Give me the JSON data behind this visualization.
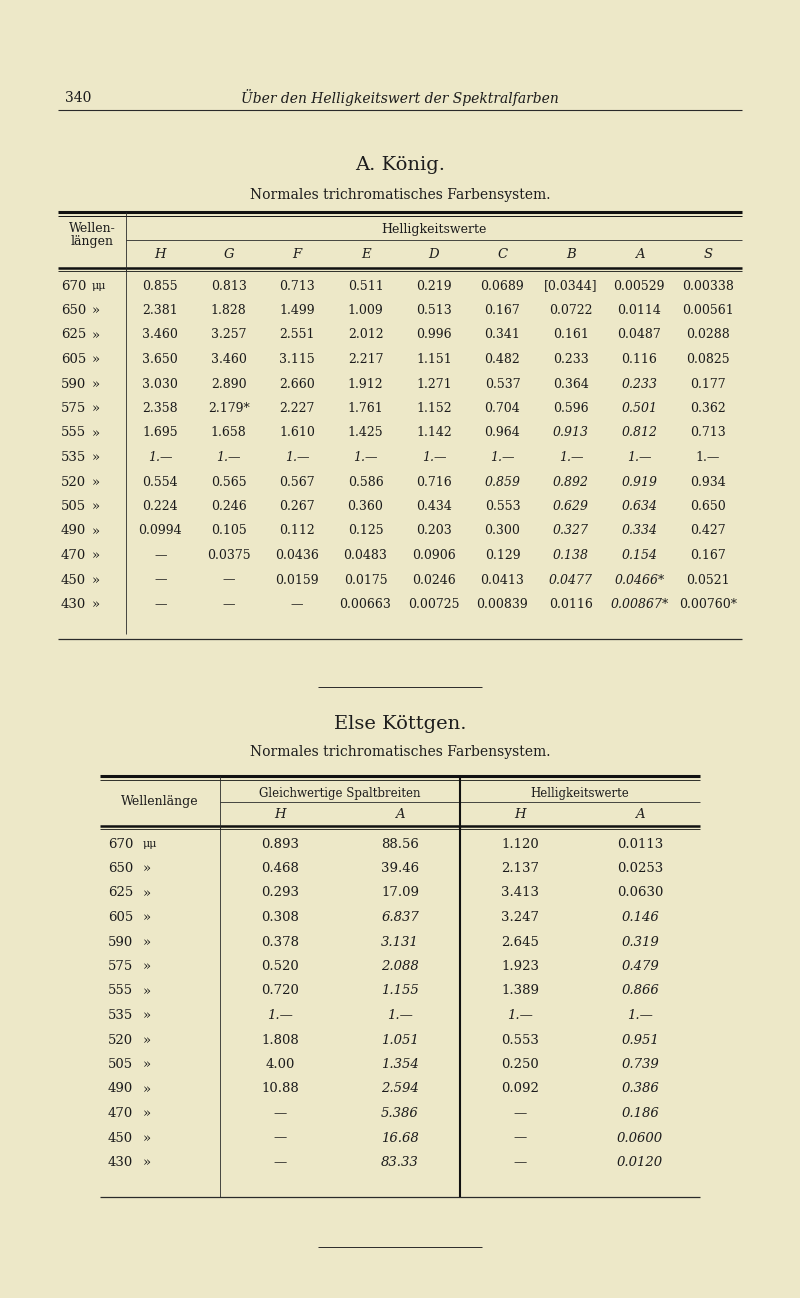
{
  "background_color": "#ede8c8",
  "page_number": "340",
  "page_header": "Über den Helligkeitswert der Spektralfarben",
  "section1_title": "A. König.",
  "section1_subtitle": "Normales trichromatisches Farbensystem.",
  "section1_col_header_span": "Helligkeitswerte",
  "section1_row_header": [
    "Wellen-",
    "längen"
  ],
  "section1_col_headers": [
    "H",
    "G",
    "F",
    "E",
    "D",
    "C",
    "B",
    "A",
    "S"
  ],
  "section1_rows": [
    [
      "670",
      "μμ",
      "0.855",
      "0.813",
      "0.713",
      "0.511",
      "0.219",
      "0.0689",
      "[0.0344]",
      "0.00529",
      "0.00338"
    ],
    [
      "650",
      "»",
      "2.381",
      "1.828",
      "1.499",
      "1.009",
      "0.513",
      "0.167",
      "0.0722",
      "0.0114",
      "0.00561"
    ],
    [
      "625",
      "»",
      "3.460",
      "3.257",
      "2.551",
      "2.012",
      "0.996",
      "0.341",
      "0.161",
      "0.0487",
      "0.0288"
    ],
    [
      "605",
      "»",
      "3.650",
      "3.460",
      "3.115",
      "2.217",
      "1.151",
      "0.482",
      "0.233",
      "0.116",
      "0.0825"
    ],
    [
      "590",
      "»",
      "3.030",
      "2.890",
      "2.660",
      "1.912",
      "1.271",
      "0.537",
      "0.364",
      "0.233",
      "0.177"
    ],
    [
      "575",
      "»",
      "2.358",
      "2.179*",
      "2.227",
      "1.761",
      "1.152",
      "0.704",
      "0.596",
      "0.501",
      "0.362"
    ],
    [
      "555",
      "»",
      "1.695",
      "1.658",
      "1.610",
      "1.425",
      "1.142",
      "0.964",
      "0.913",
      "0.812",
      "0.713"
    ],
    [
      "535",
      "»",
      "1.—",
      "1.—",
      "1.—",
      "1.—",
      "1.—",
      "1.—",
      "1.—",
      "1.—",
      "1.—"
    ],
    [
      "520",
      "»",
      "0.554",
      "0.565",
      "0.567",
      "0.586",
      "0.716",
      "0.859",
      "0.892",
      "0.919",
      "0.934"
    ],
    [
      "505",
      "»",
      "0.224",
      "0.246",
      "0.267",
      "0.360",
      "0.434",
      "0.553",
      "0.629",
      "0.634",
      "0.650"
    ],
    [
      "490",
      "»",
      "0.0994",
      "0.105",
      "0.112",
      "0.125",
      "0.203",
      "0.300",
      "0.327",
      "0.334",
      "0.427"
    ],
    [
      "470",
      "»",
      "—",
      "0.0375",
      "0.0436",
      "0.0483",
      "0.0906",
      "0.129",
      "0.138",
      "0.154",
      "0.167"
    ],
    [
      "450",
      "»",
      "—",
      "—",
      "0.0159",
      "0.0175",
      "0.0246",
      "0.0413",
      "0.0477",
      "0.0466*",
      "0.0521"
    ],
    [
      "430",
      "»",
      "—",
      "—",
      "—",
      "0.00663",
      "0.00725",
      "0.00839",
      "0.0116",
      "0.00867*",
      "0.00760*"
    ]
  ],
  "section1_italic_data": [
    [
      false,
      false,
      false,
      false,
      false,
      false,
      false,
      false,
      false
    ],
    [
      false,
      false,
      false,
      false,
      false,
      false,
      false,
      false,
      false
    ],
    [
      false,
      false,
      false,
      false,
      false,
      false,
      false,
      false,
      false
    ],
    [
      false,
      false,
      false,
      false,
      false,
      false,
      false,
      false,
      false
    ],
    [
      false,
      false,
      false,
      false,
      false,
      false,
      false,
      true,
      false
    ],
    [
      false,
      false,
      false,
      false,
      false,
      false,
      false,
      true,
      false
    ],
    [
      false,
      false,
      false,
      false,
      false,
      false,
      true,
      true,
      false
    ],
    [
      true,
      true,
      true,
      true,
      true,
      true,
      true,
      true,
      false
    ],
    [
      false,
      false,
      false,
      false,
      false,
      true,
      true,
      true,
      false
    ],
    [
      false,
      false,
      false,
      false,
      false,
      false,
      true,
      true,
      false
    ],
    [
      false,
      false,
      false,
      false,
      false,
      false,
      true,
      true,
      false
    ],
    [
      false,
      false,
      false,
      false,
      false,
      false,
      true,
      true,
      false
    ],
    [
      false,
      false,
      false,
      false,
      false,
      false,
      true,
      true,
      false
    ],
    [
      false,
      false,
      false,
      false,
      false,
      false,
      false,
      true,
      false
    ]
  ],
  "section2_title": "Else Köttgen.",
  "section2_subtitle": "Normales trichromatisches Farbensystem.",
  "section2_col_group1": "Gleichwertige Spaltbreiten",
  "section2_col_group2": "Helligkeitswerte",
  "section2_row_header": "Wellenlänge",
  "section2_col_headers": [
    "H",
    "A",
    "H",
    "A"
  ],
  "section2_rows": [
    [
      "670",
      "μμ",
      "0.893",
      "88.56",
      "1.120",
      "0.0113"
    ],
    [
      "650",
      "»",
      "0.468",
      "39.46",
      "2.137",
      "0.0253"
    ],
    [
      "625",
      "»",
      "0.293",
      "17.09",
      "3.413",
      "0.0630"
    ],
    [
      "605",
      "»",
      "0.308",
      "6.837",
      "3.247",
      "0.146"
    ],
    [
      "590",
      "»",
      "0.378",
      "3.131",
      "2.645",
      "0.319"
    ],
    [
      "575",
      "»",
      "0.520",
      "2.088",
      "1.923",
      "0.479"
    ],
    [
      "555",
      "»",
      "0.720",
      "1.155",
      "1.389",
      "0.866"
    ],
    [
      "535",
      "»",
      "1.—",
      "1.—",
      "1.—",
      "1.—"
    ],
    [
      "520",
      "»",
      "1.808",
      "1.051",
      "0.553",
      "0.951"
    ],
    [
      "505",
      "»",
      "4.00",
      "1.354",
      "0.250",
      "0.739"
    ],
    [
      "490",
      "»",
      "10.88",
      "2.594",
      "0.092",
      "0.386"
    ],
    [
      "470",
      "»",
      "—",
      "5.386",
      "—",
      "0.186"
    ],
    [
      "450",
      "»",
      "—",
      "16.68",
      "—",
      "0.0600"
    ],
    [
      "430",
      "»",
      "—",
      "83.33",
      "—",
      "0.0120"
    ]
  ],
  "section2_italic_data": [
    [
      false,
      false,
      false,
      false
    ],
    [
      false,
      false,
      false,
      false
    ],
    [
      false,
      false,
      false,
      false
    ],
    [
      false,
      true,
      false,
      true
    ],
    [
      false,
      true,
      false,
      true
    ],
    [
      false,
      true,
      false,
      true
    ],
    [
      false,
      true,
      false,
      true
    ],
    [
      true,
      true,
      true,
      true
    ],
    [
      false,
      true,
      false,
      true
    ],
    [
      false,
      true,
      false,
      true
    ],
    [
      false,
      true,
      false,
      true
    ],
    [
      false,
      true,
      false,
      true
    ],
    [
      false,
      true,
      false,
      true
    ],
    [
      false,
      true,
      false,
      true
    ]
  ]
}
